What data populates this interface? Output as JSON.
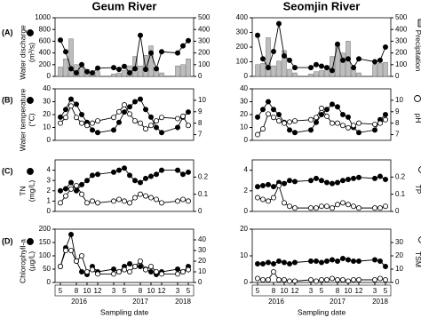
{
  "chart_data": [
    {
      "type": "combo",
      "title": "Geum River",
      "panel_label": "(A)",
      "x": [
        5,
        6,
        7,
        8,
        9,
        10,
        11,
        12,
        15,
        16,
        17,
        18,
        19,
        20,
        21,
        22,
        23,
        24,
        27,
        28,
        29
      ],
      "xlim": [
        4,
        30
      ],
      "ylim": [
        0,
        1000
      ],
      "yticks": [
        0,
        200,
        400,
        600,
        800,
        1000
      ],
      "y2lim": [
        0,
        500
      ],
      "y2ticks": [
        0,
        100,
        200,
        300,
        400,
        500
      ],
      "ylabel": [
        "Water discharge",
        "(m³/s)"
      ],
      "series": [
        {
          "type": "bar",
          "axis": "y2",
          "color": "#bdbdbd",
          "values": [
            80,
            150,
            320,
            100,
            80,
            60,
            30,
            40,
            20,
            30,
            50,
            90,
            170,
            90,
            180,
            260,
            60,
            30,
            90,
            100,
            150
          ]
        },
        {
          "type": "line",
          "axis": "y",
          "color": "#000000",
          "marker_fill": "#000000",
          "values": [
            620,
            420,
            130,
            60,
            200,
            80,
            60,
            140,
            150,
            120,
            170,
            60,
            130,
            700,
            120,
            400,
            130,
            420,
            400,
            520,
            610
          ]
        }
      ]
    },
    {
      "type": "line",
      "panel_label": "(B)",
      "x": [
        5,
        6,
        7,
        8,
        9,
        10,
        11,
        12,
        15,
        16,
        17,
        18,
        19,
        20,
        21,
        22,
        23,
        24,
        27,
        28,
        29
      ],
      "xlim": [
        4,
        30
      ],
      "ylim": [
        0,
        40
      ],
      "yticks": [
        0,
        10,
        20,
        30,
        40
      ],
      "y2lim": [
        6.5,
        11
      ],
      "y2ticks": [
        7,
        8,
        9,
        10
      ],
      "ylabel": [
        "Water temperature",
        "(°C)"
      ],
      "series": [
        {
          "type": "line",
          "axis": "y",
          "color": "#000000",
          "marker_fill": "#000000",
          "values": [
            18,
            24,
            32,
            28,
            20,
            14,
            8,
            6,
            8,
            14,
            22,
            26,
            30,
            32,
            24,
            18,
            10,
            6,
            10,
            18,
            22
          ]
        },
        {
          "type": "line",
          "axis": "y2",
          "color": "#000000",
          "marker_fill": "#ffffff",
          "values": [
            8,
            8.5,
            9.5,
            8.5,
            8,
            7.8,
            8,
            8.2,
            8.5,
            9,
            9.6,
            8.8,
            8.2,
            8,
            7.5,
            7.8,
            8.2,
            8.5,
            8.4,
            8.6,
            7.8
          ]
        }
      ]
    },
    {
      "type": "line",
      "panel_label": "(C)",
      "x": [
        5,
        6,
        7,
        8,
        9,
        10,
        11,
        12,
        15,
        16,
        17,
        18,
        19,
        20,
        21,
        22,
        23,
        24,
        27,
        28,
        29
      ],
      "xlim": [
        4,
        30
      ],
      "ylim": [
        0,
        5
      ],
      "yticks": [
        0,
        1,
        2,
        3,
        4
      ],
      "y2lim": [
        0,
        0.3
      ],
      "y2ticks": [
        0,
        0.1,
        0.2
      ],
      "ylabel": [
        "TN",
        "(mg/L)"
      ],
      "series": [
        {
          "type": "line",
          "axis": "y",
          "color": "#000000",
          "marker_fill": "#000000",
          "values": [
            2.0,
            2.2,
            2.8,
            2.0,
            2.6,
            3.0,
            3.5,
            3.6,
            3.8,
            4.0,
            4.2,
            3.5,
            3.0,
            2.8,
            3.2,
            3.4,
            3.6,
            4.0,
            4.0,
            3.6,
            3.8
          ]
        },
        {
          "type": "line",
          "axis": "y2",
          "color": "#000000",
          "marker_fill": "#ffffff",
          "values": [
            0.05,
            0.09,
            0.13,
            0.15,
            0.1,
            0.05,
            0.06,
            0.05,
            0.06,
            0.07,
            0.06,
            0.05,
            0.08,
            0.1,
            0.09,
            0.08,
            0.07,
            0.05,
            0.06,
            0.07,
            0.06
          ]
        }
      ]
    },
    {
      "type": "line",
      "panel_label": "(D)",
      "x": [
        5,
        6,
        7,
        8,
        9,
        10,
        11,
        12,
        15,
        16,
        17,
        18,
        19,
        20,
        21,
        22,
        23,
        24,
        27,
        28,
        29
      ],
      "xlim": [
        4,
        30
      ],
      "ylim": [
        0,
        200
      ],
      "yticks": [
        0,
        50,
        100,
        150,
        200
      ],
      "y2lim": [
        0,
        50
      ],
      "y2ticks": [
        0,
        10,
        20,
        30,
        40
      ],
      "ylabel": [
        "Chlorophyll-a",
        "(µg/L)"
      ],
      "xticks": [
        {
          "value": 5,
          "label": "5"
        },
        {
          "value": 8,
          "label": "8"
        },
        {
          "value": 10,
          "label": "10"
        },
        {
          "value": 12,
          "label": "12"
        },
        {
          "value": 15,
          "label": "3"
        },
        {
          "value": 17,
          "label": "5"
        },
        {
          "value": 20,
          "label": "8"
        },
        {
          "value": 22,
          "label": "10"
        },
        {
          "value": 24,
          "label": "12"
        },
        {
          "value": 27,
          "label": "3"
        },
        {
          "value": 29,
          "label": "5"
        }
      ],
      "year_labels": [
        {
          "value": 8.5,
          "label": "2016"
        },
        {
          "value": 20,
          "label": "2017"
        },
        {
          "value": 28,
          "label": "2018"
        }
      ],
      "xlabel": "Sampling date",
      "series": [
        {
          "type": "line",
          "axis": "y",
          "color": "#000000",
          "marker_fill": "#000000",
          "values": [
            60,
            130,
            180,
            80,
            40,
            30,
            60,
            40,
            50,
            40,
            60,
            70,
            60,
            60,
            50,
            40,
            30,
            40,
            50,
            40,
            60
          ]
        },
        {
          "type": "line",
          "axis": "y2",
          "color": "#000000",
          "marker_fill": "#ffffff",
          "values": [
            15,
            30,
            30,
            20,
            25,
            10,
            12,
            8,
            8,
            10,
            12,
            10,
            15,
            20,
            12,
            15,
            10,
            8,
            8,
            10,
            12
          ]
        }
      ]
    },
    {
      "type": "combo",
      "title": "Seomjin River",
      "x": [
        5,
        6,
        7,
        8,
        9,
        10,
        11,
        12,
        15,
        16,
        17,
        18,
        19,
        20,
        21,
        22,
        23,
        24,
        27,
        28,
        29
      ],
      "xlim": [
        4,
        30
      ],
      "ylim": [
        0,
        400
      ],
      "yticks": [
        0,
        100,
        200,
        300,
        400
      ],
      "y2lim": [
        0,
        500
      ],
      "y2ticks": [
        0,
        100,
        200,
        300,
        400,
        500
      ],
      "y2label": [
        "Precipitation",
        "(mm)"
      ],
      "series": [
        {
          "type": "bar",
          "axis": "y2",
          "color": "#bdbdbd",
          "values": [
            100,
            110,
            330,
            90,
            130,
            220,
            60,
            30,
            20,
            40,
            50,
            90,
            170,
            260,
            200,
            300,
            60,
            30,
            100,
            110,
            120
          ]
        },
        {
          "type": "line",
          "axis": "y",
          "color": "#000000",
          "marker_fill": "#000000",
          "values": [
            280,
            120,
            60,
            170,
            360,
            140,
            110,
            60,
            60,
            80,
            70,
            60,
            40,
            220,
            110,
            120,
            60,
            120,
            100,
            110,
            200
          ]
        }
      ]
    },
    {
      "type": "line",
      "x": [
        5,
        6,
        7,
        8,
        9,
        10,
        11,
        12,
        15,
        16,
        17,
        18,
        19,
        20,
        21,
        22,
        23,
        24,
        27,
        28,
        29
      ],
      "xlim": [
        4,
        30
      ],
      "ylim": [
        0,
        40
      ],
      "yticks": [
        0,
        10,
        20,
        30,
        40
      ],
      "y2lim": [
        6.5,
        11
      ],
      "y2ticks": [
        7,
        8,
        9,
        10
      ],
      "y2label": [
        "pH"
      ],
      "series": [
        {
          "type": "line",
          "axis": "y",
          "color": "#000000",
          "marker_fill": "#000000",
          "values": [
            18,
            24,
            30,
            24,
            20,
            14,
            8,
            6,
            8,
            14,
            20,
            24,
            28,
            26,
            20,
            18,
            10,
            6,
            8,
            16,
            20
          ]
        },
        {
          "type": "line",
          "axis": "y2",
          "color": "#000000",
          "marker_fill": "#ffffff",
          "values": [
            7,
            7.5,
            8.8,
            8.5,
            8.2,
            8,
            8.1,
            8.2,
            8.3,
            8.5,
            9.3,
            8.6,
            8,
            8,
            7.8,
            7.6,
            7.8,
            8,
            7.9,
            8,
            8.3
          ]
        }
      ]
    },
    {
      "type": "line",
      "x": [
        5,
        6,
        7,
        8,
        9,
        10,
        11,
        12,
        15,
        16,
        17,
        18,
        19,
        20,
        21,
        22,
        23,
        24,
        27,
        28,
        29
      ],
      "xlim": [
        4,
        30
      ],
      "ylim": [
        0,
        5
      ],
      "yticks": [
        0,
        2,
        4
      ],
      "y2lim": [
        0,
        0.3
      ],
      "y2ticks": [
        0,
        0.1,
        0.2
      ],
      "y2label": [
        "TP",
        "(mg/L)"
      ],
      "series": [
        {
          "type": "line",
          "axis": "y",
          "color": "#000000",
          "marker_fill": "#000000",
          "values": [
            2.4,
            2.5,
            2.6,
            2.4,
            2.8,
            2.7,
            3.0,
            2.9,
            3.0,
            3.2,
            3.0,
            2.8,
            2.7,
            2.8,
            3.0,
            3.1,
            3.2,
            3.3,
            3.2,
            3.4,
            3.1
          ]
        },
        {
          "type": "line",
          "axis": "y2",
          "color": "#000000",
          "marker_fill": "#ffffff",
          "values": [
            0.08,
            0.07,
            0.06,
            0.08,
            0.15,
            0.05,
            0.03,
            0.02,
            0.02,
            0.02,
            0.03,
            0.03,
            0.02,
            0.04,
            0.05,
            0.04,
            0.03,
            0.02,
            0.02,
            0.02,
            0.03
          ]
        }
      ]
    },
    {
      "type": "line",
      "x": [
        5,
        6,
        7,
        8,
        9,
        10,
        11,
        12,
        15,
        16,
        17,
        18,
        19,
        20,
        21,
        22,
        23,
        24,
        27,
        28,
        29
      ],
      "xlim": [
        4,
        30
      ],
      "ylim": [
        0,
        20
      ],
      "yticks": [
        0,
        10,
        20
      ],
      "y2lim": [
        0,
        40
      ],
      "y2ticks": [
        0,
        10,
        20,
        30
      ],
      "y2label": [
        "TSM",
        "(mg/L)"
      ],
      "xticks": [
        {
          "value": 5,
          "label": "5"
        },
        {
          "value": 8,
          "label": "8"
        },
        {
          "value": 10,
          "label": "10"
        },
        {
          "value": 12,
          "label": "12"
        },
        {
          "value": 15,
          "label": "3"
        },
        {
          "value": 17,
          "label": "5"
        },
        {
          "value": 20,
          "label": "8"
        },
        {
          "value": 22,
          "label": "10"
        },
        {
          "value": 24,
          "label": "12"
        },
        {
          "value": 27,
          "label": "3"
        },
        {
          "value": 29,
          "label": "5"
        }
      ],
      "year_labels": [
        {
          "value": 8.5,
          "label": "2016"
        },
        {
          "value": 20,
          "label": "2017"
        },
        {
          "value": 28,
          "label": "2018"
        }
      ],
      "xlabel": "Sampling date",
      "series": [
        {
          "type": "line",
          "axis": "y",
          "color": "#000000",
          "marker_fill": "#000000",
          "values": [
            7,
            7,
            7.5,
            7,
            8,
            7.5,
            7,
            7.5,
            8,
            8,
            7.5,
            8,
            8.5,
            8,
            9,
            8.5,
            8,
            8,
            8.5,
            8,
            6
          ]
        },
        {
          "type": "line",
          "axis": "y2",
          "color": "#000000",
          "marker_fill": "#ffffff",
          "values": [
            3,
            2,
            2,
            8,
            2,
            2,
            1,
            1,
            2,
            1,
            2,
            2,
            3,
            2,
            2,
            1,
            2,
            2,
            2,
            3,
            2
          ]
        }
      ]
    }
  ]
}
